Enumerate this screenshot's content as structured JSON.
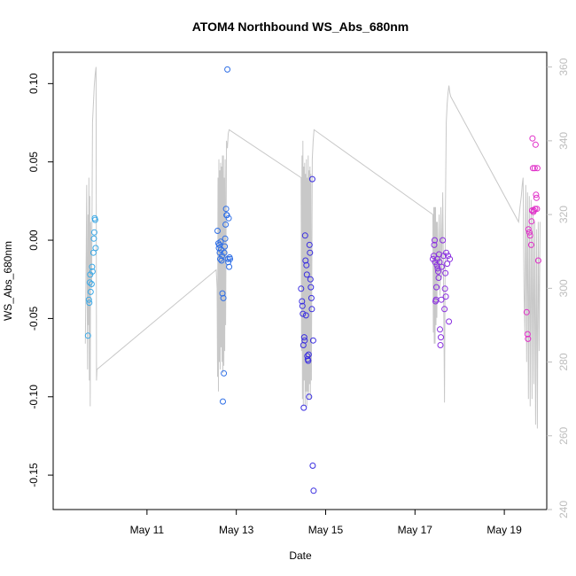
{
  "chart_data": {
    "type": "scatter",
    "title": "ATOM4 Northbound WS_Abs_680nm",
    "xlabel": "Date",
    "ylabel": "WS_Abs_680nm",
    "x_range": [
      8.9,
      19.95
    ],
    "y_range": [
      -0.172,
      0.12
    ],
    "y2_range": [
      240,
      364
    ],
    "x_ticks": [
      {
        "value": 11,
        "label": "May 11"
      },
      {
        "value": 13,
        "label": "May 13"
      },
      {
        "value": 15,
        "label": "May 15"
      },
      {
        "value": 17,
        "label": "May 17"
      },
      {
        "value": 19,
        "label": "May 19"
      }
    ],
    "y_ticks": [
      {
        "value": 0.1,
        "label": "0.10"
      },
      {
        "value": 0.05,
        "label": "0.05"
      },
      {
        "value": 0.0,
        "label": "0.00"
      },
      {
        "value": -0.05,
        "label": "-0.05"
      },
      {
        "value": -0.1,
        "label": "-0.10"
      },
      {
        "value": -0.15,
        "label": "-0.15"
      }
    ],
    "y2_ticks": [
      {
        "value": 360,
        "label": "360"
      },
      {
        "value": 340,
        "label": "340"
      },
      {
        "value": 320,
        "label": "320"
      },
      {
        "value": 300,
        "label": "300"
      },
      {
        "value": 280,
        "label": "280"
      },
      {
        "value": 260,
        "label": "260"
      },
      {
        "value": 240,
        "label": "240"
      }
    ],
    "grid": false,
    "series": [
      {
        "color": "#3aa8e6",
        "points": [
          [
            9.68,
            -0.061
          ],
          [
            9.72,
            -0.027
          ],
          [
            9.7,
            -0.038
          ],
          [
            9.71,
            -0.04
          ],
          [
            9.74,
            -0.033
          ],
          [
            9.73,
            -0.022
          ],
          [
            9.76,
            -0.028
          ],
          [
            9.77,
            -0.017
          ],
          [
            9.78,
            -0.02
          ],
          [
            9.8,
            -0.008
          ],
          [
            9.81,
            0.001
          ],
          [
            9.82,
            0.005
          ],
          [
            9.83,
            0.014
          ],
          [
            9.84,
            0.013
          ],
          [
            9.85,
            -0.005
          ]
        ]
      },
      {
        "color": "#2f6fe6",
        "points": [
          [
            12.58,
            0.006
          ],
          [
            12.6,
            -0.002
          ],
          [
            12.61,
            -0.005
          ],
          [
            12.62,
            -0.003
          ],
          [
            12.63,
            -0.008
          ],
          [
            12.64,
            -0.012
          ],
          [
            12.65,
            -0.001
          ],
          [
            12.66,
            -0.006
          ],
          [
            12.67,
            -0.013
          ],
          [
            12.68,
            -0.01
          ],
          [
            12.69,
            -0.034
          ],
          [
            12.7,
            -0.103
          ],
          [
            12.71,
            -0.037
          ],
          [
            12.72,
            -0.085
          ],
          [
            12.73,
            -0.008
          ],
          [
            12.74,
            -0.004
          ],
          [
            12.75,
            0.001
          ],
          [
            12.76,
            0.01
          ],
          [
            12.77,
            0.02
          ],
          [
            12.78,
            0.016
          ],
          [
            12.79,
            0.016
          ],
          [
            12.8,
            0.109
          ],
          [
            12.81,
            -0.012
          ],
          [
            12.82,
            -0.014
          ],
          [
            12.83,
            0.014
          ],
          [
            12.84,
            -0.017
          ],
          [
            12.85,
            -0.011
          ],
          [
            12.86,
            -0.012
          ]
        ]
      },
      {
        "color": "#3a2ee0",
        "points": [
          [
            14.45,
            -0.031
          ],
          [
            14.47,
            -0.039
          ],
          [
            14.48,
            -0.042
          ],
          [
            14.49,
            -0.047
          ],
          [
            14.5,
            -0.067
          ],
          [
            14.51,
            -0.107
          ],
          [
            14.52,
            -0.062
          ],
          [
            14.53,
            -0.064
          ],
          [
            14.54,
            0.003
          ],
          [
            14.55,
            -0.013
          ],
          [
            14.56,
            -0.048
          ],
          [
            14.57,
            -0.016
          ],
          [
            14.58,
            -0.022
          ],
          [
            14.59,
            -0.074
          ],
          [
            14.6,
            -0.076
          ],
          [
            14.61,
            -0.077
          ],
          [
            14.62,
            -0.073
          ],
          [
            14.63,
            -0.1
          ],
          [
            14.64,
            -0.003
          ],
          [
            14.65,
            -0.008
          ],
          [
            14.66,
            -0.025
          ],
          [
            14.67,
            -0.03
          ],
          [
            14.68,
            -0.037
          ],
          [
            14.69,
            -0.044
          ],
          [
            14.7,
            0.039
          ],
          [
            14.71,
            -0.144
          ],
          [
            14.72,
            -0.064
          ],
          [
            14.73,
            -0.16
          ]
        ]
      },
      {
        "color": "#8a2fe0",
        "points": [
          [
            17.4,
            -0.012
          ],
          [
            17.42,
            -0.01
          ],
          [
            17.43,
            -0.003
          ],
          [
            17.44,
            0.0
          ],
          [
            17.45,
            -0.014
          ],
          [
            17.46,
            -0.039
          ],
          [
            17.47,
            -0.038
          ],
          [
            17.48,
            -0.03
          ],
          [
            17.49,
            -0.016
          ],
          [
            17.5,
            -0.012
          ],
          [
            17.51,
            -0.018
          ],
          [
            17.52,
            -0.02
          ],
          [
            17.53,
            -0.024
          ],
          [
            17.54,
            -0.009
          ],
          [
            17.55,
            -0.014
          ],
          [
            17.56,
            -0.057
          ],
          [
            17.57,
            -0.067
          ],
          [
            17.58,
            -0.062
          ],
          [
            17.59,
            -0.038
          ],
          [
            17.6,
            -0.017
          ],
          [
            17.62,
            0.0
          ],
          [
            17.64,
            -0.01
          ],
          [
            17.66,
            -0.044
          ],
          [
            17.67,
            -0.031
          ],
          [
            17.68,
            -0.021
          ],
          [
            17.69,
            -0.036
          ],
          [
            17.7,
            -0.008
          ],
          [
            17.72,
            -0.015
          ],
          [
            17.74,
            -0.01
          ],
          [
            17.76,
            -0.052
          ],
          [
            17.78,
            -0.012
          ]
        ]
      },
      {
        "color": "#e02ec8",
        "points": [
          [
            19.5,
            -0.046
          ],
          [
            19.52,
            -0.06
          ],
          [
            19.53,
            -0.063
          ],
          [
            19.54,
            0.007
          ],
          [
            19.56,
            0.005
          ],
          [
            19.58,
            0.003
          ],
          [
            19.6,
            -0.003
          ],
          [
            19.61,
            0.012
          ],
          [
            19.62,
            0.019
          ],
          [
            19.63,
            0.065
          ],
          [
            19.64,
            0.046
          ],
          [
            19.65,
            0.018
          ],
          [
            19.66,
            0.019
          ],
          [
            19.68,
            0.046
          ],
          [
            19.69,
            0.02
          ],
          [
            19.7,
            0.061
          ],
          [
            19.71,
            0.029
          ],
          [
            19.72,
            0.027
          ],
          [
            19.73,
            0.02
          ],
          [
            19.74,
            0.046
          ],
          [
            19.76,
            -0.013
          ]
        ]
      }
    ],
    "secondary_trace": {
      "color": "#c8c8c8",
      "axis": "right",
      "points": [
        [
          9.62,
          285
        ],
        [
          9.64,
          310
        ],
        [
          9.65,
          328
        ],
        [
          9.66,
          300
        ],
        [
          9.67,
          278
        ],
        [
          9.68,
          320
        ],
        [
          9.69,
          290
        ],
        [
          9.7,
          330
        ],
        [
          9.71,
          275
        ],
        [
          9.72,
          325
        ],
        [
          9.73,
          268
        ],
        [
          9.74,
          318
        ],
        [
          9.76,
          300
        ],
        [
          9.78,
          345
        ],
        [
          9.8,
          350
        ],
        [
          9.82,
          355
        ],
        [
          9.84,
          358
        ],
        [
          9.86,
          360
        ],
        [
          9.87,
          275
        ],
        [
          9.88,
          278
        ],
        [
          12.55,
          305
        ],
        [
          12.57,
          300
        ],
        [
          12.58,
          276
        ],
        [
          12.59,
          330
        ],
        [
          12.6,
          272
        ],
        [
          12.61,
          335
        ],
        [
          12.62,
          280
        ],
        [
          12.63,
          332
        ],
        [
          12.64,
          278
        ],
        [
          12.65,
          334
        ],
        [
          12.66,
          284
        ],
        [
          12.67,
          333
        ],
        [
          12.68,
          280
        ],
        [
          12.69,
          336
        ],
        [
          12.7,
          277
        ],
        [
          12.71,
          336
        ],
        [
          12.72,
          279
        ],
        [
          12.73,
          330
        ],
        [
          12.74,
          283
        ],
        [
          12.75,
          335
        ],
        [
          12.76,
          290
        ],
        [
          12.78,
          340
        ],
        [
          12.8,
          338
        ],
        [
          12.82,
          342
        ],
        [
          12.84,
          343
        ],
        [
          14.45,
          330
        ],
        [
          14.46,
          283
        ],
        [
          14.47,
          336
        ],
        [
          14.48,
          270
        ],
        [
          14.49,
          340
        ],
        [
          14.5,
          268
        ],
        [
          14.51,
          333
        ],
        [
          14.52,
          275
        ],
        [
          14.53,
          334
        ],
        [
          14.54,
          268
        ],
        [
          14.55,
          331
        ],
        [
          14.56,
          272
        ],
        [
          14.57,
          335
        ],
        [
          14.58,
          268
        ],
        [
          14.59,
          330
        ],
        [
          14.6,
          272
        ],
        [
          14.61,
          336
        ],
        [
          14.62,
          270
        ],
        [
          14.63,
          332
        ],
        [
          14.64,
          274
        ],
        [
          14.65,
          333
        ],
        [
          14.66,
          270
        ],
        [
          14.67,
          331
        ],
        [
          14.68,
          275
        ],
        [
          14.7,
          335
        ],
        [
          14.72,
          340
        ],
        [
          14.74,
          343
        ],
        [
          17.4,
          320
        ],
        [
          17.41,
          288
        ],
        [
          17.42,
          322
        ],
        [
          17.43,
          285
        ],
        [
          17.44,
          322
        ],
        [
          17.45,
          285
        ],
        [
          17.46,
          322
        ],
        [
          17.47,
          290
        ],
        [
          17.48,
          318
        ],
        [
          17.49,
          292
        ],
        [
          17.5,
          318
        ],
        [
          17.52,
          300
        ],
        [
          17.54,
          320
        ],
        [
          17.56,
          298
        ],
        [
          17.58,
          322
        ],
        [
          17.6,
          303
        ],
        [
          17.62,
          326
        ],
        [
          17.64,
          300
        ],
        [
          17.65,
          285
        ],
        [
          17.66,
          269
        ],
        [
          17.68,
          320
        ],
        [
          17.7,
          345
        ],
        [
          17.72,
          350
        ],
        [
          17.74,
          353
        ],
        [
          17.76,
          355
        ],
        [
          17.78,
          353
        ],
        [
          17.8,
          352
        ],
        [
          19.32,
          318
        ],
        [
          19.35,
          322
        ],
        [
          19.38,
          325
        ],
        [
          19.4,
          328
        ],
        [
          19.42,
          330
        ],
        [
          19.44,
          300
        ],
        [
          19.46,
          288
        ],
        [
          19.48,
          328
        ],
        [
          19.5,
          280
        ],
        [
          19.52,
          326
        ],
        [
          19.54,
          270
        ],
        [
          19.56,
          325
        ],
        [
          19.58,
          268
        ],
        [
          19.6,
          324
        ],
        [
          19.62,
          270
        ],
        [
          19.64,
          322
        ],
        [
          19.66,
          274
        ],
        [
          19.68,
          318
        ],
        [
          19.7,
          263
        ],
        [
          19.72,
          316
        ],
        [
          19.74,
          262
        ],
        [
          19.76,
          318
        ],
        [
          19.78,
          283
        ],
        [
          19.8,
          318
        ]
      ]
    }
  }
}
